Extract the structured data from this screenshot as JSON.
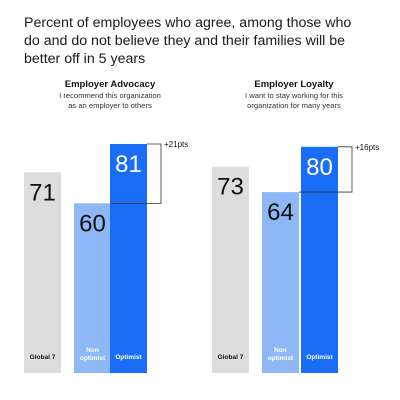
{
  "title": "Percent of employees who agree, among those who do and do not believe they and their families will be better off in 5 years",
  "colors": {
    "global": "#dddddd",
    "non_optimist": "#8db8f5",
    "optimist": "#1a6ef5"
  },
  "chart_data": [
    {
      "type": "bar",
      "title": "Employer Advocacy",
      "subtitle": [
        "I recommend this organization",
        "as an employer to others"
      ],
      "categories": [
        "Global 7",
        "Non optimist",
        "Optimist"
      ],
      "category_lines": [
        [
          "Global 7"
        ],
        [
          "Non",
          "optimist"
        ],
        [
          "Optimist"
        ]
      ],
      "values": [
        71,
        60,
        81
      ],
      "delta_label": "+21pts",
      "ylim": [
        0,
        100
      ]
    },
    {
      "type": "bar",
      "title": "Employer Loyalty",
      "subtitle": [
        "I want to stay working for this",
        "organization for many years"
      ],
      "categories": [
        "Global 7",
        "Non optimist",
        "Optimist"
      ],
      "category_lines": [
        [
          "Global 7"
        ],
        [
          "Non",
          "optimist"
        ],
        [
          "Optimist"
        ]
      ],
      "values": [
        73,
        64,
        80
      ],
      "delta_label": "+16pts",
      "ylim": [
        0,
        100
      ]
    }
  ]
}
